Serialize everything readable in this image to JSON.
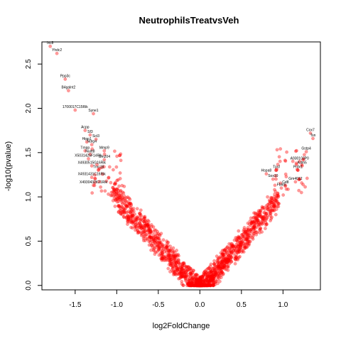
{
  "chart_data": {
    "type": "scatter",
    "title": "NeutrophilsTreatvsVeh",
    "xlabel": "log2FoldChange",
    "ylabel": "-log10(pvalue)",
    "xlim": [
      -1.9,
      1.45
    ],
    "ylim": [
      -0.05,
      2.75
    ],
    "x_ticks": [
      "-1.5",
      "-1.0",
      "-0.5",
      "0.0",
      "0.5",
      "1.0"
    ],
    "y_ticks": [
      "0.0",
      "0.5",
      "1.0",
      "1.5",
      "2.0",
      "2.5"
    ],
    "x_tick_values": [
      -1.5,
      -1.0,
      -0.5,
      0.0,
      0.5,
      1.0
    ],
    "y_tick_values": [
      0.0,
      0.5,
      1.0,
      1.5,
      2.0,
      2.5
    ],
    "point_color": "#ff0000",
    "point_alpha": 0.4,
    "labeled_points": [
      {
        "label": "Ixc8",
        "x": -1.8,
        "y": 2.7
      },
      {
        "label": "Yhdc2",
        "x": -1.72,
        "y": 2.62
      },
      {
        "label": "Ppp3c",
        "x": -1.62,
        "y": 2.33
      },
      {
        "label": "B4galnt2",
        "x": -1.58,
        "y": 2.2
      },
      {
        "label": "1700017C15Rik",
        "x": -1.5,
        "y": 1.98
      },
      {
        "label": "Syne1",
        "x": -1.28,
        "y": 1.94
      },
      {
        "label": "Acpp",
        "x": -1.38,
        "y": 1.75
      },
      {
        "label": "Sf3",
        "x": -1.32,
        "y": 1.7
      },
      {
        "label": "Sct3",
        "x": -1.25,
        "y": 1.65
      },
      {
        "label": "Hipp1",
        "x": -1.36,
        "y": 1.62
      },
      {
        "label": "Ndrg4",
        "x": -1.3,
        "y": 1.59
      },
      {
        "label": "Tmpp",
        "x": -1.38,
        "y": 1.52
      },
      {
        "label": "Mmp9",
        "x": -1.15,
        "y": 1.52
      },
      {
        "label": "Nudt8",
        "x": -1.32,
        "y": 1.48
      },
      {
        "label": "Gm204",
        "x": -1.15,
        "y": 1.42
      },
      {
        "label": "X5031425F14Rik",
        "x": -1.34,
        "y": 1.43
      },
      {
        "label": "X4930515G16Rik",
        "x": -1.3,
        "y": 1.35
      },
      {
        "label": "Tnrc18",
        "x": -1.22,
        "y": 1.3
      },
      {
        "label": "X4931431C16Rik",
        "x": -1.3,
        "y": 1.22
      },
      {
        "label": "X4930432K21Rik",
        "x": -1.28,
        "y": 1.13
      },
      {
        "label": "Cox7",
        "x": 1.33,
        "y": 1.72
      },
      {
        "label": "Tsn",
        "x": 1.36,
        "y": 1.66
      },
      {
        "label": "Gstp4",
        "x": 1.28,
        "y": 1.51
      },
      {
        "label": "A930103P0",
        "x": 1.2,
        "y": 1.4
      },
      {
        "label": "Kdm5",
        "x": 1.23,
        "y": 1.35
      },
      {
        "label": "Prdx1",
        "x": 1.18,
        "y": 1.3
      },
      {
        "label": "Tpsf",
        "x": 0.92,
        "y": 1.3
      },
      {
        "label": "Hspa8",
        "x": 0.8,
        "y": 1.26
      },
      {
        "label": "Sox10",
        "x": 0.88,
        "y": 1.2
      },
      {
        "label": "Cd8",
        "x": 1.03,
        "y": 1.13
      },
      {
        "label": "Fbln5",
        "x": 0.98,
        "y": 1.1
      },
      {
        "label": "Gm4012",
        "x": 1.15,
        "y": 1.17
      }
    ],
    "label_text": [
      "Ixc8",
      "Yhdc2",
      "Ppp3c",
      "B4galnt2",
      "1700017C15Rik",
      "Syne1",
      "Acpp",
      "Sf3",
      "Sct3",
      "Hipp1",
      "Ndrg4",
      "Tmpp",
      "Mmp9",
      "Nudt8",
      "Gm204",
      "X5031425F14Rik",
      "X4930515G16Rik",
      "Tnrc18",
      "X4931431C16Rik",
      "X4930432K21Rik",
      "Cox7",
      "Tsn",
      "Gstp4",
      "A930103P0",
      "Kdm5",
      "Prdx1",
      "Tpsf",
      "Hspa8",
      "Sox10",
      "Cd8",
      "Fbln5",
      "Gm4012"
    ]
  }
}
